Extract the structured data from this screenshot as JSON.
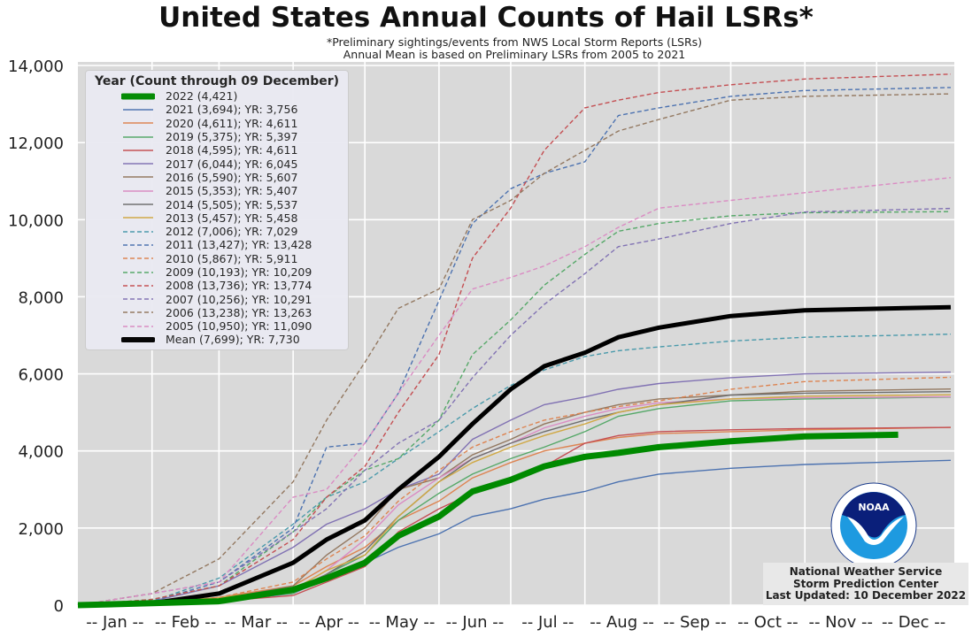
{
  "title": "United States Annual Counts of Hail LSRs*",
  "subtitle1": "*Preliminary sightings/events from NWS Local Storm Reports (LSRs)",
  "subtitle2": "Annual Mean is based on Preliminary LSRs from 2005 to 2021",
  "footer": {
    "line1": "National Weather Service",
    "line2": "Storm Prediction Center",
    "line3": "Last Updated: 10 December 2022"
  },
  "logo_text": "NOAA",
  "logo_ring": "NATIONAL OCEANIC AND ATMOSPHERIC ADMINISTRATION · U.S. DEPARTMENT OF COMMERCE",
  "chart_data": {
    "type": "line",
    "title": "United States Annual Counts of Hail LSRs*",
    "xlabel": "",
    "ylabel": "",
    "xlim": [
      0,
      365
    ],
    "ylim": [
      0,
      14000
    ],
    "grid": true,
    "legend_title": "Year (Count through 09 December)",
    "legend_placement": "top-left",
    "yticks": [
      0,
      2000,
      4000,
      6000,
      8000,
      10000,
      12000,
      14000
    ],
    "ytick_labels": [
      "0",
      "2,000",
      "4,000",
      "6,000",
      "8,000",
      "10,000",
      "12,000",
      "14,000"
    ],
    "month_boundaries": [
      31,
      59,
      90,
      120,
      151,
      181,
      212,
      243,
      273,
      304,
      334
    ],
    "xtick_labels": [
      "-- Jan --",
      "-- Feb --",
      "-- Mar --",
      "-- Apr --",
      "-- May --",
      "-- Jun --",
      "-- Jul --",
      "-- Aug --",
      "-- Sep --",
      "-- Oct --",
      "-- Nov --",
      "-- Dec --"
    ],
    "x_days": [
      0,
      31,
      59,
      90,
      104,
      120,
      134,
      151,
      165,
      181,
      195,
      212,
      226,
      243,
      273,
      304,
      365
    ],
    "series": [
      {
        "name": "2021 (3,694); YR: 3,756",
        "color": "#4c72b0",
        "dash": false,
        "values": [
          0,
          30,
          100,
          300,
          700,
          1100,
          1500,
          1850,
          2300,
          2500,
          2750,
          2950,
          3200,
          3400,
          3550,
          3650,
          3756
        ]
      },
      {
        "name": "2020 (4,611); YR: 4,611",
        "color": "#dd8452",
        "dash": false,
        "values": [
          0,
          50,
          200,
          500,
          1000,
          1500,
          2200,
          2700,
          3300,
          3700,
          4000,
          4200,
          4350,
          4450,
          4500,
          4550,
          4611
        ]
      },
      {
        "name": "2019 (5,375); YR: 5,397",
        "color": "#55a868",
        "dash": false,
        "values": [
          0,
          50,
          150,
          300,
          800,
          1300,
          2200,
          2900,
          3400,
          3800,
          4100,
          4500,
          4900,
          5100,
          5300,
          5350,
          5397
        ]
      },
      {
        "name": "2018 (4,595); YR: 4,611",
        "color": "#c44e52",
        "dash": false,
        "values": [
          0,
          30,
          100,
          250,
          600,
          1000,
          1900,
          2500,
          2900,
          3200,
          3600,
          4200,
          4400,
          4500,
          4550,
          4580,
          4611
        ]
      },
      {
        "name": "2017 (6,044); YR: 6,045",
        "color": "#8172b3",
        "dash": false,
        "values": [
          0,
          100,
          500,
          1500,
          2100,
          2500,
          3000,
          3400,
          4300,
          4800,
          5200,
          5400,
          5600,
          5750,
          5900,
          6000,
          6045
        ]
      },
      {
        "name": "2016 (5,590); YR: 5,607",
        "color": "#937860",
        "dash": false,
        "values": [
          0,
          50,
          150,
          500,
          1300,
          2000,
          3000,
          3300,
          3900,
          4300,
          4700,
          5000,
          5200,
          5350,
          5450,
          5550,
          5607
        ]
      },
      {
        "name": "2015 (5,353); YR: 5,407",
        "color": "#da8bc3",
        "dash": false,
        "values": [
          0,
          50,
          150,
          400,
          900,
          1700,
          2600,
          3300,
          3800,
          4200,
          4600,
          4900,
          5100,
          5250,
          5350,
          5380,
          5407
        ]
      },
      {
        "name": "2014 (5,505); YR: 5,537",
        "color": "#6e6e6e",
        "dash": false,
        "values": [
          0,
          50,
          100,
          400,
          800,
          1400,
          2300,
          3200,
          3800,
          4200,
          4500,
          4800,
          5000,
          5200,
          5450,
          5500,
          5537
        ]
      },
      {
        "name": "2013 (5,457); YR: 5,458",
        "color": "#d0a844",
        "dash": false,
        "values": [
          0,
          50,
          200,
          400,
          900,
          1300,
          2300,
          3200,
          3700,
          4100,
          4400,
          4700,
          5000,
          5200,
          5350,
          5420,
          5458
        ]
      },
      {
        "name": "2012 (7,006); YR: 7,029",
        "color": "#4a9aab",
        "dash": true,
        "values": [
          0,
          100,
          700,
          2100,
          2800,
          3200,
          3800,
          4500,
          5100,
          5700,
          6100,
          6450,
          6600,
          6700,
          6850,
          6950,
          7029
        ]
      },
      {
        "name": "2011 (13,427); YR: 13,428",
        "color": "#4c72b0",
        "dash": true,
        "values": [
          0,
          100,
          600,
          2000,
          4100,
          4200,
          5500,
          7900,
          9900,
          10800,
          11200,
          11500,
          12700,
          12900,
          13200,
          13350,
          13428
        ]
      },
      {
        "name": "2010 (5,867); YR: 5,911",
        "color": "#dd8452",
        "dash": true,
        "values": [
          0,
          50,
          200,
          600,
          1200,
          1800,
          2700,
          3500,
          4100,
          4500,
          4800,
          5000,
          5150,
          5300,
          5600,
          5800,
          5911
        ]
      },
      {
        "name": "2009 (10,193); YR: 10,209",
        "color": "#55a868",
        "dash": true,
        "values": [
          0,
          150,
          500,
          1900,
          2800,
          3500,
          3800,
          4800,
          6500,
          7400,
          8300,
          9100,
          9700,
          9900,
          10100,
          10180,
          10209
        ]
      },
      {
        "name": "2008 (13,736); YR: 13,774",
        "color": "#c44e52",
        "dash": true,
        "values": [
          0,
          150,
          500,
          1700,
          2800,
          3600,
          5000,
          6500,
          9000,
          10300,
          11800,
          12900,
          13100,
          13300,
          13500,
          13650,
          13774
        ]
      },
      {
        "name": "2007 (10,256); YR: 10,291",
        "color": "#8172b3",
        "dash": true,
        "values": [
          0,
          300,
          600,
          1900,
          2500,
          3500,
          4200,
          4800,
          5900,
          7000,
          7800,
          8600,
          9300,
          9500,
          9900,
          10200,
          10291
        ]
      },
      {
        "name": "2006 (13,238); YR: 13,263",
        "color": "#937860",
        "dash": true,
        "values": [
          0,
          300,
          1200,
          3200,
          4800,
          6300,
          7700,
          8200,
          10000,
          10500,
          11200,
          11800,
          12300,
          12600,
          13100,
          13200,
          13263
        ]
      },
      {
        "name": "2005 (10,950); YR: 11,090",
        "color": "#da8bc3",
        "dash": true,
        "values": [
          0,
          300,
          600,
          2800,
          3000,
          4200,
          5500,
          7000,
          8200,
          8500,
          8800,
          9300,
          9800,
          10300,
          10500,
          10700,
          11090
        ]
      },
      {
        "name": "Mean (7,699); YR: 7,730",
        "color": "#000000",
        "dash": false,
        "thick": true,
        "values": [
          0,
          50,
          300,
          1100,
          1700,
          2200,
          3000,
          3850,
          4700,
          5600,
          6200,
          6550,
          6950,
          7200,
          7500,
          7650,
          7730
        ]
      }
    ],
    "current": {
      "name": "2022 (4,421)",
      "color": "#008a00",
      "x_days": [
        0,
        31,
        59,
        90,
        104,
        120,
        134,
        151,
        165,
        181,
        195,
        212,
        226,
        243,
        273,
        304,
        343
      ],
      "values": [
        0,
        50,
        100,
        400,
        700,
        1100,
        1800,
        2300,
        2950,
        3250,
        3600,
        3850,
        3950,
        4100,
        4250,
        4380,
        4421
      ]
    }
  }
}
